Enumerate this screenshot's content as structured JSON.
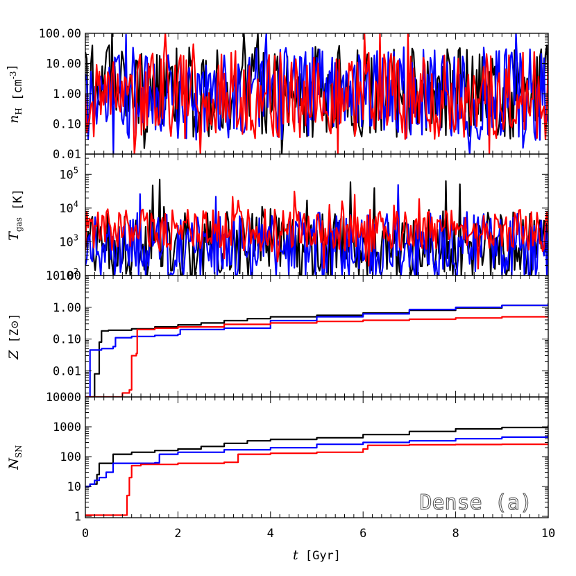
{
  "chart_data": [
    {
      "type": "line",
      "panel": "nH",
      "ylabel_main": "n",
      "ylabel_sub": "H",
      "ylabel_unit_open": " [cm",
      "ylabel_unit_sup": "-3",
      "ylabel_unit_close": "]",
      "yscale": "log",
      "ylim": [
        0.01,
        100
      ],
      "yticks": [
        "100.00",
        "10.00",
        "1.00",
        "0.10",
        "0.01"
      ],
      "ytick_values": [
        100,
        10,
        1,
        0.1,
        0.01
      ],
      "xlim": [
        0,
        10
      ],
      "series": [
        {
          "color": "#000000",
          "style": "noise",
          "base": 1.2,
          "spread": 1.1,
          "seed": 11,
          "n": 330
        },
        {
          "color": "#0000ff",
          "style": "noise",
          "base": 1.0,
          "spread": 1.1,
          "seed": 23,
          "n": 330
        },
        {
          "color": "#ff0000",
          "style": "noise",
          "base": 0.9,
          "spread": 1.05,
          "seed": 37,
          "n": 330
        }
      ]
    },
    {
      "type": "line",
      "panel": "Tgas",
      "ylabel_main": "T",
      "ylabel_sub": "gas",
      "ylabel_unit_open": " [K]",
      "yscale": "log",
      "ylim": [
        100,
        400000
      ],
      "yticks": [
        "10",
        "10",
        "10",
        "10"
      ],
      "ytick_exp": [
        "2",
        "3",
        "4",
        "5"
      ],
      "ytick_values": [
        100,
        1000,
        10000,
        100000
      ],
      "xlim": [
        0,
        10
      ],
      "series": [
        {
          "color": "#000000",
          "style": "noise",
          "base": 800,
          "spread": 0.75,
          "seed": 5,
          "n": 330
        },
        {
          "color": "#0000ff",
          "style": "noise",
          "base": 700,
          "spread": 0.75,
          "seed": 17,
          "n": 330
        },
        {
          "color": "#ff0000",
          "style": "noise",
          "base": 2200,
          "spread": 0.45,
          "seed": 29,
          "n": 330
        }
      ]
    },
    {
      "type": "line",
      "panel": "Z",
      "ylabel_main": "Z",
      "ylabel_unit_open": " [Z",
      "ylabel_unit_close": "]",
      "yscale": "log",
      "ylim": [
        0.0015,
        10
      ],
      "yticks": [
        "10.00",
        "1.00",
        "0.10",
        "0.01"
      ],
      "ytick_values": [
        10,
        1,
        0.1,
        0.01
      ],
      "xlim": [
        0,
        10
      ],
      "series": [
        {
          "color": "#000000",
          "style": "step",
          "points": [
            [
              0.0,
              0.0015
            ],
            [
              0.15,
              0.0015
            ],
            [
              0.2,
              0.008
            ],
            [
              0.3,
              0.08
            ],
            [
              0.35,
              0.18
            ],
            [
              0.5,
              0.19
            ],
            [
              1.0,
              0.21
            ],
            [
              1.5,
              0.24
            ],
            [
              2.0,
              0.28
            ],
            [
              2.5,
              0.32
            ],
            [
              3.0,
              0.38
            ],
            [
              3.5,
              0.44
            ],
            [
              4.0,
              0.5
            ],
            [
              5.0,
              0.56
            ],
            [
              6.0,
              0.66
            ],
            [
              7.0,
              0.8
            ],
            [
              8.0,
              0.95
            ],
            [
              9.0,
              1.15
            ],
            [
              10.0,
              1.35
            ]
          ]
        },
        {
          "color": "#0000ff",
          "style": "step",
          "points": [
            [
              0.0,
              0.0015
            ],
            [
              0.1,
              0.0015
            ],
            [
              0.1,
              0.045
            ],
            [
              0.35,
              0.05
            ],
            [
              0.6,
              0.058
            ],
            [
              0.65,
              0.11
            ],
            [
              1.0,
              0.12
            ],
            [
              1.5,
              0.13
            ],
            [
              2.0,
              0.14
            ],
            [
              2.05,
              0.2
            ],
            [
              3.0,
              0.22
            ],
            [
              4.0,
              0.38
            ],
            [
              5.0,
              0.5
            ],
            [
              6.0,
              0.62
            ],
            [
              7.0,
              0.85
            ],
            [
              8.0,
              1.0
            ],
            [
              9.0,
              1.15
            ],
            [
              10.0,
              1.3
            ]
          ]
        },
        {
          "color": "#ff0000",
          "style": "step",
          "points": [
            [
              0.0,
              0.0015
            ],
            [
              0.7,
              0.0015
            ],
            [
              0.8,
              0.002
            ],
            [
              0.95,
              0.0025
            ],
            [
              1.0,
              0.03
            ],
            [
              1.1,
              0.035
            ],
            [
              1.12,
              0.2
            ],
            [
              1.5,
              0.22
            ],
            [
              2.0,
              0.24
            ],
            [
              3.0,
              0.29
            ],
            [
              4.0,
              0.32
            ],
            [
              5.0,
              0.36
            ],
            [
              6.0,
              0.39
            ],
            [
              7.0,
              0.42
            ],
            [
              8.0,
              0.46
            ],
            [
              9.0,
              0.5
            ],
            [
              10.0,
              0.52
            ]
          ]
        }
      ]
    },
    {
      "type": "line",
      "panel": "NSN",
      "ylabel_main": "N",
      "ylabel_sub": "SN",
      "yscale": "log",
      "ylim": [
        0.9,
        10000
      ],
      "yticks": [
        "10000",
        "1000",
        "100",
        "10",
        "1"
      ],
      "ytick_values": [
        10000,
        1000,
        100,
        10,
        1
      ],
      "xlim": [
        0,
        10
      ],
      "xlabel_main": "t",
      "xlabel_unit": " [Gyr]",
      "xticks": [
        "0",
        "2",
        "4",
        "6",
        "8",
        "10"
      ],
      "xtick_values": [
        0,
        2,
        4,
        6,
        8,
        10
      ],
      "series": [
        {
          "color": "#000000",
          "style": "step",
          "points": [
            [
              0.0,
              10
            ],
            [
              0.1,
              12
            ],
            [
              0.25,
              25
            ],
            [
              0.3,
              60
            ],
            [
              0.6,
              120
            ],
            [
              1.0,
              140
            ],
            [
              1.5,
              160
            ],
            [
              2.0,
              180
            ],
            [
              2.5,
              220
            ],
            [
              3.0,
              280
            ],
            [
              3.5,
              340
            ],
            [
              4.0,
              380
            ],
            [
              5.0,
              430
            ],
            [
              6.0,
              550
            ],
            [
              7.0,
              700
            ],
            [
              8.0,
              850
            ],
            [
              9.0,
              950
            ],
            [
              10.0,
              1150
            ]
          ]
        },
        {
          "color": "#0000ff",
          "style": "step",
          "points": [
            [
              0.0,
              10
            ],
            [
              0.1,
              12
            ],
            [
              0.2,
              16
            ],
            [
              0.3,
              20
            ],
            [
              0.45,
              30
            ],
            [
              0.6,
              60
            ],
            [
              1.5,
              62
            ],
            [
              1.6,
              120
            ],
            [
              2.0,
              140
            ],
            [
              3.0,
              170
            ],
            [
              4.0,
              200
            ],
            [
              5.0,
              260
            ],
            [
              6.0,
              300
            ],
            [
              7.0,
              340
            ],
            [
              8.0,
              400
            ],
            [
              9.0,
              450
            ],
            [
              10.0,
              560
            ]
          ]
        },
        {
          "color": "#ff0000",
          "style": "step",
          "points": [
            [
              0.0,
              1.1
            ],
            [
              0.85,
              1.1
            ],
            [
              0.9,
              5
            ],
            [
              0.95,
              20
            ],
            [
              1.0,
              50
            ],
            [
              1.2,
              55
            ],
            [
              2.0,
              60
            ],
            [
              3.0,
              65
            ],
            [
              3.3,
              120
            ],
            [
              4.0,
              130
            ],
            [
              5.0,
              140
            ],
            [
              6.0,
              180
            ],
            [
              6.1,
              240
            ],
            [
              7.0,
              250
            ],
            [
              8.0,
              255
            ],
            [
              9.0,
              260
            ],
            [
              10.0,
              262
            ]
          ]
        }
      ]
    }
  ],
  "annotation": "Dense (a)"
}
